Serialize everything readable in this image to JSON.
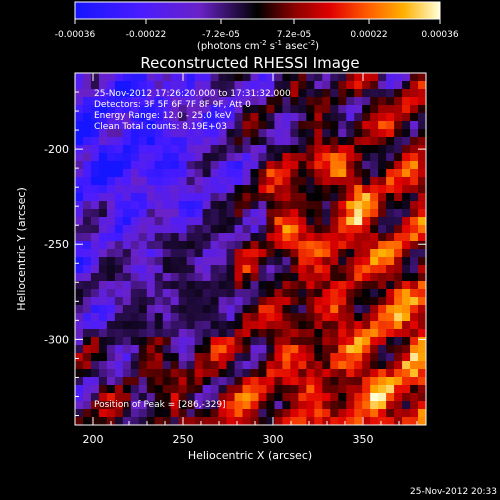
{
  "chart_data": {
    "type": "heatmap",
    "title": "Reconstructed RHESSI Image",
    "xlabel": "Heliocentric X (arcsec)",
    "ylabel": "Heliocentric Y (arcsec)",
    "xlim": [
      190,
      385
    ],
    "ylim": [
      -345,
      -160
    ],
    "x_ticks": [
      200,
      250,
      300,
      350
    ],
    "y_ticks": [
      -200,
      -250,
      -300
    ],
    "colorbar": {
      "label_prefix": "(photons cm",
      "label_exp1": "-2",
      "label_mid": " s",
      "label_exp2": "-1",
      "label_mid2": " asec",
      "label_exp3": "-2",
      "label_suffix": ")",
      "min": -0.00036,
      "max": 0.00036,
      "ticks": [
        {
          "value": -0.00036,
          "label": "-0.00036"
        },
        {
          "value": -0.00022,
          "label": "-0.00022"
        },
        {
          "value": -7.2e-05,
          "label": "-7.2e-05"
        },
        {
          "value": 7.2e-05,
          "label": "7.2e-05"
        },
        {
          "value": 0.00022,
          "label": "0.00022"
        },
        {
          "value": 0.00036,
          "label": "0.00036"
        }
      ]
    },
    "annotations": [
      "25-Nov-2012 17:26:20.000 to 17:31:32.000",
      "Detectors: 3F 5F 6F 7F 8F 9F, Att 0",
      "Energy Range: 12.0 - 25.0 keV",
      "Clean    Total counts: 8.19E+03"
    ],
    "peak_label": "Position of Peak = [286,-329]",
    "peak": [
      286,
      -329
    ],
    "grid": false
  },
  "footer": {
    "timestamp": "25-Nov-2012 20:33"
  }
}
